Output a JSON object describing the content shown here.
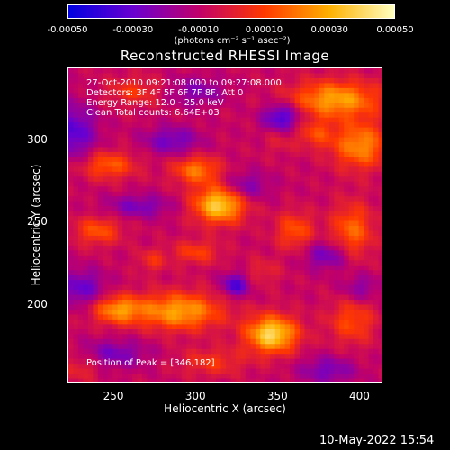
{
  "chart_data": {
    "type": "heatmap",
    "title": "Reconstructed RHESSI Image",
    "colorbar": {
      "ticks": [
        "-0.00050",
        "-0.00030",
        "-0.00010",
        "0.00010",
        "0.00030",
        "0.00050"
      ],
      "range": [
        -0.0005,
        0.0005
      ],
      "units": "(photons cm⁻² s⁻¹ asec⁻²)",
      "colors": [
        "#0000e0",
        "#6a00d0",
        "#c0006a",
        "#ff3800",
        "#ffb000",
        "#ffffc0"
      ]
    },
    "annotations": [
      "27-Oct-2010 09:21:08.000 to 09:27:08.000",
      "Detectors: 3F 4F 5F 6F 7F 8F, Att 0",
      "Energy Range: 12.0 - 25.0 keV",
      "Clean     Total counts: 6.64E+03",
      "Position of Peak = [346,182]"
    ],
    "xlabel": "Heliocentric X (arcsec)",
    "ylabel": "Heliocentric Y (arcsec)",
    "xlim": [
      222,
      414
    ],
    "ylim": [
      152,
      344
    ],
    "xticks": [
      "250",
      "300",
      "350",
      "400"
    ],
    "yticks": [
      "200",
      "250",
      "300"
    ],
    "peak": [
      346,
      182
    ],
    "blobs": [
      {
        "x": 346,
        "y": 182,
        "v": 0.00048,
        "sx": 11,
        "sy": 8
      },
      {
        "x": 314,
        "y": 261,
        "v": 0.00046,
        "sx": 11,
        "sy": 8
      },
      {
        "x": 290,
        "y": 196,
        "v": 0.00036,
        "sx": 18,
        "sy": 8
      },
      {
        "x": 385,
        "y": 325,
        "v": 0.00036,
        "sx": 19,
        "sy": 8
      },
      {
        "x": 400,
        "y": 297,
        "v": 0.00032,
        "sx": 12,
        "sy": 10
      },
      {
        "x": 252,
        "y": 197,
        "v": 0.00032,
        "sx": 11,
        "sy": 6
      },
      {
        "x": 300,
        "y": 282,
        "v": 0.00028,
        "sx": 10,
        "sy": 6
      },
      {
        "x": 246,
        "y": 285,
        "v": 0.00024,
        "sx": 12,
        "sy": 6
      },
      {
        "x": 240,
        "y": 245,
        "v": 0.00022,
        "sx": 10,
        "sy": 6
      },
      {
        "x": 360,
        "y": 245,
        "v": 0.00022,
        "sx": 8,
        "sy": 8
      },
      {
        "x": 395,
        "y": 245,
        "v": 0.00025,
        "sx": 9,
        "sy": 12
      },
      {
        "x": 300,
        "y": 232,
        "v": 0.00018,
        "sx": 10,
        "sy": 5
      },
      {
        "x": 262,
        "y": 330,
        "v": 0.00015,
        "sx": 12,
        "sy": 6
      },
      {
        "x": 310,
        "y": 165,
        "v": 0.00015,
        "sx": 14,
        "sy": 6
      },
      {
        "x": 395,
        "y": 190,
        "v": 0.0002,
        "sx": 10,
        "sy": 10
      },
      {
        "x": 273,
        "y": 227,
        "v": 0.00014,
        "sx": 6,
        "sy": 5
      },
      {
        "x": 372,
        "y": 304,
        "v": 0.00018,
        "sx": 8,
        "sy": 6
      },
      {
        "x": 230,
        "y": 162,
        "v": 0.00012,
        "sx": 8,
        "sy": 6
      },
      {
        "x": 340,
        "y": 220,
        "v": 0.0001,
        "sx": 8,
        "sy": 6
      },
      {
        "x": 350,
        "y": 300,
        "v": 8e-05,
        "sx": 6,
        "sy": 6
      },
      {
        "x": 352,
        "y": 314,
        "v": -0.0003,
        "sx": 8,
        "sy": 6
      },
      {
        "x": 324,
        "y": 212,
        "v": -0.00028,
        "sx": 6,
        "sy": 5
      },
      {
        "x": 225,
        "y": 305,
        "v": -0.00025,
        "sx": 10,
        "sy": 12
      },
      {
        "x": 285,
        "y": 300,
        "v": -0.0002,
        "sx": 12,
        "sy": 6
      },
      {
        "x": 330,
        "y": 272,
        "v": -0.00018,
        "sx": 10,
        "sy": 6
      },
      {
        "x": 265,
        "y": 260,
        "v": -0.00018,
        "sx": 14,
        "sy": 5
      },
      {
        "x": 230,
        "y": 210,
        "v": -0.00022,
        "sx": 10,
        "sy": 8
      },
      {
        "x": 380,
        "y": 230,
        "v": -0.0002,
        "sx": 10,
        "sy": 6
      },
      {
        "x": 250,
        "y": 170,
        "v": -0.00018,
        "sx": 14,
        "sy": 6
      },
      {
        "x": 380,
        "y": 160,
        "v": -0.00018,
        "sx": 12,
        "sy": 6
      },
      {
        "x": 400,
        "y": 210,
        "v": -0.00015,
        "sx": 8,
        "sy": 6
      },
      {
        "x": 300,
        "y": 330,
        "v": -0.00016,
        "sx": 12,
        "sy": 6
      }
    ],
    "base": -8e-05
  },
  "footer": {
    "date": "10-May-2022 15:54"
  }
}
